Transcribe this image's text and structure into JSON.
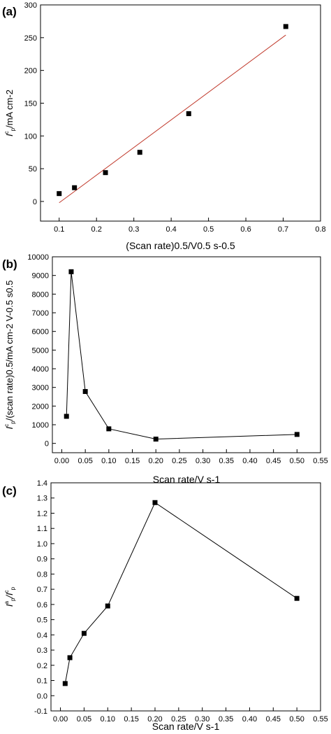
{
  "chart_data": [
    {
      "panel_label": "(a)",
      "type": "scatter",
      "xlabel": "(Scan rate)0.5/V0.5 s-0.5",
      "ylabel": {
        "main": "I",
        "sup": "c",
        "sub": "p",
        "rest": "/mA cm-2"
      },
      "xlim": [
        0.05,
        0.8
      ],
      "ylim": [
        -30,
        300
      ],
      "xticks": [
        0.1,
        0.2,
        0.3,
        0.4,
        0.5,
        0.6,
        0.7,
        0.8
      ],
      "yticks": [
        0,
        50,
        100,
        150,
        200,
        250,
        300
      ],
      "grid": false,
      "series": [
        {
          "x": [
            0.1,
            0.141,
            0.224,
            0.316,
            0.447,
            0.707
          ],
          "y": [
            12,
            21,
            44,
            75,
            134,
            267
          ],
          "marker": "square",
          "line": false
        }
      ],
      "fit_line": {
        "x": [
          0.1,
          0.707
        ],
        "y": [
          -2,
          254
        ],
        "color": "#c0392b"
      }
    },
    {
      "panel_label": "(b)",
      "type": "line",
      "xlabel": "Scan rate/V s-1",
      "ylabel": {
        "main": "I",
        "sup": "c",
        "sub": "p",
        "rest": "/(scan rate)0.5/mA cm-2 V-0.5 s0.5"
      },
      "xlim": [
        -0.02,
        0.55
      ],
      "ylim": [
        -500,
        10000
      ],
      "xticks": [
        0.0,
        0.05,
        0.1,
        0.15,
        0.2,
        0.25,
        0.3,
        0.35,
        0.4,
        0.45,
        0.5
      ],
      "xtick_labels": [
        "0.00",
        "0.05",
        "0.10",
        "0.15",
        "0.20",
        "0.25",
        "0.30",
        "0.35",
        "0.40",
        "0.45",
        "0.50"
      ],
      "extra_edge_tick_label": "0.55",
      "yticks": [
        0,
        1000,
        2000,
        3000,
        4000,
        5000,
        6000,
        7000,
        8000,
        9000,
        10000
      ],
      "grid": false,
      "series": [
        {
          "x": [
            0.01,
            0.02,
            0.05,
            0.1,
            0.2,
            0.5
          ],
          "y": [
            1450,
            9200,
            2780,
            780,
            230,
            480
          ],
          "marker": "square",
          "line": true
        }
      ]
    },
    {
      "panel_label": "(c)",
      "type": "line",
      "xlabel": "Scan rate/V s-1",
      "ylabel": {
        "main": "I",
        "sup1": "a",
        "sub1": "p",
        "mid": "/I",
        "sup2": "c",
        "sub2": "p"
      },
      "xlim": [
        -0.02,
        0.55
      ],
      "ylim": [
        -0.1,
        1.4
      ],
      "xticks": [
        0.0,
        0.05,
        0.1,
        0.15,
        0.2,
        0.25,
        0.3,
        0.35,
        0.4,
        0.45,
        0.5,
        0.55
      ],
      "xtick_labels": [
        "0.00",
        "0.05",
        "0.10",
        "0.15",
        "0.20",
        "0.25",
        "0.30",
        "0.35",
        "0.40",
        "0.45",
        "0.50",
        "0.55"
      ],
      "yticks": [
        -0.1,
        0.0,
        0.1,
        0.2,
        0.3,
        0.4,
        0.5,
        0.6,
        0.7,
        0.8,
        0.9,
        1.0,
        1.1,
        1.2,
        1.3,
        1.4
      ],
      "ytick_labels": [
        "-0.1",
        "0.0",
        "0.1",
        "0.2",
        "0.3",
        "0.4",
        "0.5",
        "0.6",
        "0.7",
        "0.8",
        "0.9",
        "1.0",
        "1.1",
        "1.2",
        "1.3",
        "1.4"
      ],
      "grid": false,
      "series": [
        {
          "x": [
            0.01,
            0.02,
            0.05,
            0.1,
            0.2,
            0.5
          ],
          "y": [
            0.08,
            0.25,
            0.41,
            0.59,
            1.27,
            0.64
          ],
          "marker": "square",
          "line": true
        }
      ]
    }
  ]
}
